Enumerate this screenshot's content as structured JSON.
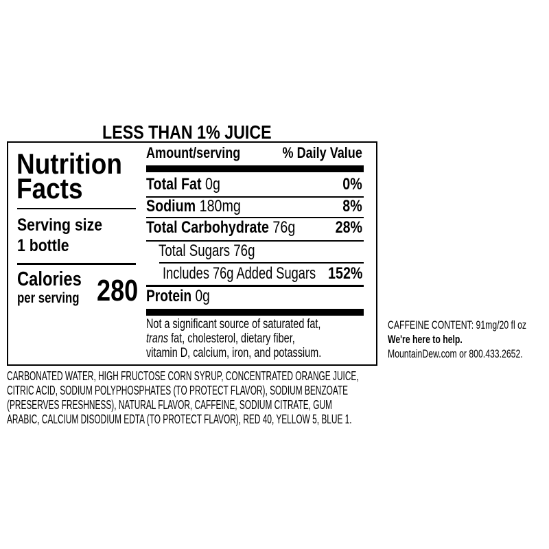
{
  "header": "LESS THAN 1% JUICE",
  "panel": {
    "title_line1": "Nutrition",
    "title_line2": "Facts",
    "serving_label": "Serving size",
    "serving_value": "1 bottle",
    "calories_label": "Calories",
    "calories_sub": "per serving",
    "calories_value": "280",
    "amount_header": "Amount/serving",
    "dv_header": "% Daily Value",
    "rows": [
      {
        "name": "Total Fat",
        "amount": "0g",
        "dv": "0%"
      },
      {
        "name": "Sodium",
        "amount": "180mg",
        "dv": "8%"
      },
      {
        "name": "Total Carbohydrate",
        "amount": "76g",
        "dv": "28%"
      },
      {
        "name": "Total Sugars 76g",
        "amount": "",
        "dv": ""
      },
      {
        "name": "Includes 76g Added Sugars",
        "amount": "",
        "dv": "152%"
      },
      {
        "name": "Protein",
        "amount": "0g",
        "dv": ""
      }
    ],
    "footnote": {
      "line1": "Not a significant source of saturated fat,",
      "line2_italic": "trans",
      "line2_rest": " fat, cholesterol, dietary fiber,",
      "line3": "vitamin D, calcium, iron, and potassium."
    }
  },
  "side": {
    "caffeine": "CAFFEINE CONTENT: 91mg/20 fl oz",
    "help": "We're here to help.",
    "contact": "MountainDew.com or 800.433.2652."
  },
  "ingredients": [
    "CARBONATED WATER, HIGH FRUCTOSE CORN SYRUP, CONCENTRATED ORANGE JUICE,",
    "CITRIC ACID, SODIUM POLYPHOSPHATES (TO PROTECT FLAVOR), SODIUM BENZOATE",
    "(PRESERVES FRESHNESS), NATURAL FLAVOR, CAFFEINE, SODIUM CITRATE, GUM",
    "ARABIC, CALCIUM DISODIUM EDTA (TO PROTECT FLAVOR), RED 40, YELLOW 5, BLUE 1."
  ]
}
